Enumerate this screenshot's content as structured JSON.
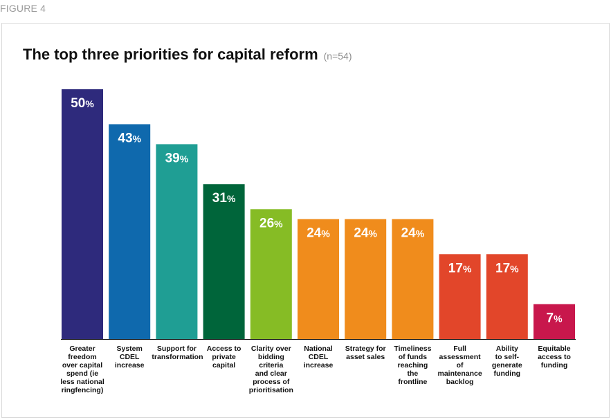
{
  "figure_label": "FIGURE 4",
  "chart_data": {
    "type": "bar",
    "title": "The top three priorities for capital reform",
    "subtitle": "(n=54)",
    "categories": [
      "Greater freedom over capital spend (ie less national ringfencing)",
      "System CDEL increase",
      "Support for transformation",
      "Access to private capital",
      "Clarity over bidding criteria and clear process of prioritisation",
      "National CDEL increase",
      "Strategy for asset sales",
      "Timeliness of funds reaching the frontline",
      "Full assessment of maintenance backlog",
      "Ability to self-generate funding",
      "Equitable access to funding"
    ],
    "category_lines": [
      [
        "Greater",
        "freedom",
        "over capital",
        "spend (ie",
        "less national",
        "ringfencing)"
      ],
      [
        "System",
        "CDEL",
        "increase"
      ],
      [
        "Support for",
        "transformation"
      ],
      [
        "Access to",
        "private",
        "capital"
      ],
      [
        "Clarity over",
        "bidding criteria",
        "and clear",
        "process of",
        "prioritisation"
      ],
      [
        "National",
        "CDEL",
        "increase"
      ],
      [
        "Strategy for",
        "asset sales"
      ],
      [
        "Timeliness",
        "of funds",
        "reaching",
        "the",
        "frontline"
      ],
      [
        "Full",
        "assessment of",
        "maintenance",
        "backlog"
      ],
      [
        "Ability",
        "to self-",
        "generate",
        "funding"
      ],
      [
        "Equitable",
        "access to",
        "funding"
      ]
    ],
    "values": [
      50,
      43,
      39,
      31,
      26,
      24,
      24,
      24,
      17,
      17,
      7
    ],
    "value_suffix": "%",
    "colors": [
      "#2e2a7c",
      "#0f69ad",
      "#1f9e94",
      "#00653a",
      "#86bc25",
      "#f08c1c",
      "#f08c1c",
      "#f08c1c",
      "#e2462a",
      "#e2462a",
      "#c8174c"
    ],
    "ylim": [
      0,
      50
    ],
    "grid": false,
    "legend": "none"
  }
}
